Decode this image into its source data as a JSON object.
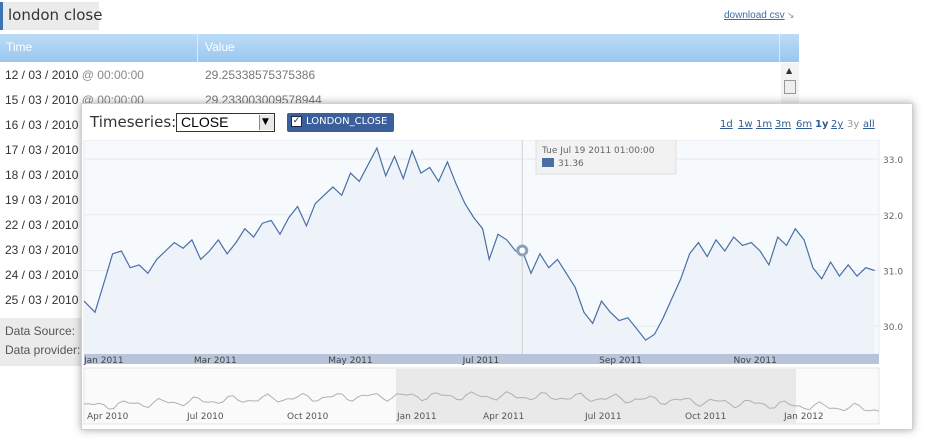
{
  "header": {
    "title": "london close",
    "download_label": "download csv"
  },
  "table": {
    "columns": [
      "Time",
      "Value"
    ],
    "rows": [
      {
        "date": "12 / 03 / 2010",
        "time": "@ 00:00:00",
        "value": "29.25338575375386"
      },
      {
        "date": "15 / 03 / 2010",
        "time": "@ 00:00:00",
        "value": "29.233003009578944"
      },
      {
        "date": "16 / 03 / 2010"
      },
      {
        "date": "17 / 03 / 2010"
      },
      {
        "date": "18 / 03 / 2010"
      },
      {
        "date": "19 / 03 / 2010"
      },
      {
        "date": "22 / 03 / 2010"
      },
      {
        "date": "23 / 03 / 2010"
      },
      {
        "date": "24 / 03 / 2010"
      },
      {
        "date": "25 / 03 / 2010"
      }
    ]
  },
  "footer": {
    "data_source_label": "Data Source:",
    "data_provider_label": "Data provider:"
  },
  "chart_panel": {
    "timeseries_label": "Timeseries:",
    "selected_field": "CLOSE",
    "series_toggle_label": "LONDON_CLOSE",
    "series_checked": true,
    "zoom_options": [
      "1d",
      "1w",
      "1m",
      "3m",
      "6m",
      "1y",
      "2y",
      "3y",
      "all"
    ],
    "zoom_active": "1y",
    "zoom_disabled": "3y",
    "tooltip": {
      "date": "Tue Jul 19 2011 01:00:00",
      "value": "31.36"
    }
  },
  "chart_data": {
    "type": "line",
    "series": [
      {
        "name": "LONDON_CLOSE",
        "color": "#4a6fa5"
      }
    ],
    "x_tick_labels": [
      "Jan 2011",
      "Mar 2011",
      "May 2011",
      "Jul 2011",
      "Sep 2011",
      "Nov 2011"
    ],
    "y_tick_labels": [
      "33.0",
      "32.0",
      "31.0",
      "30.0"
    ],
    "ylim": [
      29.5,
      33.2
    ],
    "navigator_tick_labels": [
      "Apr 2010",
      "Jul 2010",
      "Oct 2010",
      "Jan 2011",
      "Apr 2011",
      "Jul 2011",
      "Oct 2011",
      "Jan 2012"
    ],
    "points": [
      [
        "2011-01-01",
        30.45
      ],
      [
        "2011-01-06",
        30.25
      ],
      [
        "2011-01-11",
        30.9
      ],
      [
        "2011-01-14",
        31.3
      ],
      [
        "2011-01-18",
        31.35
      ],
      [
        "2011-01-22",
        31.05
      ],
      [
        "2011-01-26",
        31.1
      ],
      [
        "2011-01-30",
        30.95
      ],
      [
        "2011-02-03",
        31.2
      ],
      [
        "2011-02-07",
        31.35
      ],
      [
        "2011-02-11",
        31.5
      ],
      [
        "2011-02-15",
        31.4
      ],
      [
        "2011-02-19",
        31.55
      ],
      [
        "2011-02-23",
        31.2
      ],
      [
        "2011-02-27",
        31.35
      ],
      [
        "2011-03-03",
        31.55
      ],
      [
        "2011-03-07",
        31.3
      ],
      [
        "2011-03-11",
        31.5
      ],
      [
        "2011-03-15",
        31.75
      ],
      [
        "2011-03-19",
        31.6
      ],
      [
        "2011-03-23",
        31.85
      ],
      [
        "2011-03-27",
        31.9
      ],
      [
        "2011-03-31",
        31.65
      ],
      [
        "2011-04-04",
        31.95
      ],
      [
        "2011-04-08",
        32.15
      ],
      [
        "2011-04-12",
        31.8
      ],
      [
        "2011-04-16",
        32.2
      ],
      [
        "2011-04-20",
        32.35
      ],
      [
        "2011-04-24",
        32.5
      ],
      [
        "2011-04-28",
        32.35
      ],
      [
        "2011-05-02",
        32.75
      ],
      [
        "2011-05-06",
        32.6
      ],
      [
        "2011-05-10",
        32.9
      ],
      [
        "2011-05-14",
        33.2
      ],
      [
        "2011-05-18",
        32.7
      ],
      [
        "2011-05-22",
        33.05
      ],
      [
        "2011-05-26",
        32.65
      ],
      [
        "2011-05-30",
        33.15
      ],
      [
        "2011-06-03",
        32.75
      ],
      [
        "2011-06-07",
        32.85
      ],
      [
        "2011-06-11",
        32.6
      ],
      [
        "2011-06-15",
        32.95
      ],
      [
        "2011-06-19",
        32.55
      ],
      [
        "2011-06-23",
        32.2
      ],
      [
        "2011-06-27",
        31.95
      ],
      [
        "2011-07-01",
        31.75
      ],
      [
        "2011-07-04",
        31.2
      ],
      [
        "2011-07-08",
        31.65
      ],
      [
        "2011-07-12",
        31.55
      ],
      [
        "2011-07-16",
        31.35
      ],
      [
        "2011-07-19",
        31.36
      ],
      [
        "2011-07-23",
        30.95
      ],
      [
        "2011-07-27",
        31.3
      ],
      [
        "2011-07-31",
        31.05
      ],
      [
        "2011-08-04",
        31.2
      ],
      [
        "2011-08-08",
        30.95
      ],
      [
        "2011-08-12",
        30.7
      ],
      [
        "2011-08-16",
        30.25
      ],
      [
        "2011-08-20",
        30.05
      ],
      [
        "2011-08-24",
        30.45
      ],
      [
        "2011-08-28",
        30.25
      ],
      [
        "2011-09-01",
        30.1
      ],
      [
        "2011-09-05",
        30.15
      ],
      [
        "2011-09-09",
        29.95
      ],
      [
        "2011-09-13",
        29.75
      ],
      [
        "2011-09-17",
        29.85
      ],
      [
        "2011-09-21",
        30.15
      ],
      [
        "2011-09-25",
        30.5
      ],
      [
        "2011-09-29",
        30.85
      ],
      [
        "2011-10-03",
        31.3
      ],
      [
        "2011-10-07",
        31.5
      ],
      [
        "2011-10-11",
        31.25
      ],
      [
        "2011-10-15",
        31.55
      ],
      [
        "2011-10-19",
        31.35
      ],
      [
        "2011-10-23",
        31.6
      ],
      [
        "2011-10-27",
        31.45
      ],
      [
        "2011-10-31",
        31.5
      ],
      [
        "2011-11-04",
        31.35
      ],
      [
        "2011-11-08",
        31.1
      ],
      [
        "2011-11-12",
        31.6
      ],
      [
        "2011-11-16",
        31.45
      ],
      [
        "2011-11-20",
        31.75
      ],
      [
        "2011-11-24",
        31.55
      ],
      [
        "2011-11-28",
        31.05
      ],
      [
        "2011-12-02",
        30.85
      ],
      [
        "2011-12-06",
        31.15
      ],
      [
        "2011-12-10",
        30.9
      ],
      [
        "2011-12-14",
        31.1
      ],
      [
        "2011-12-18",
        30.9
      ],
      [
        "2011-12-22",
        31.05
      ],
      [
        "2011-12-26",
        31.0
      ]
    ]
  }
}
